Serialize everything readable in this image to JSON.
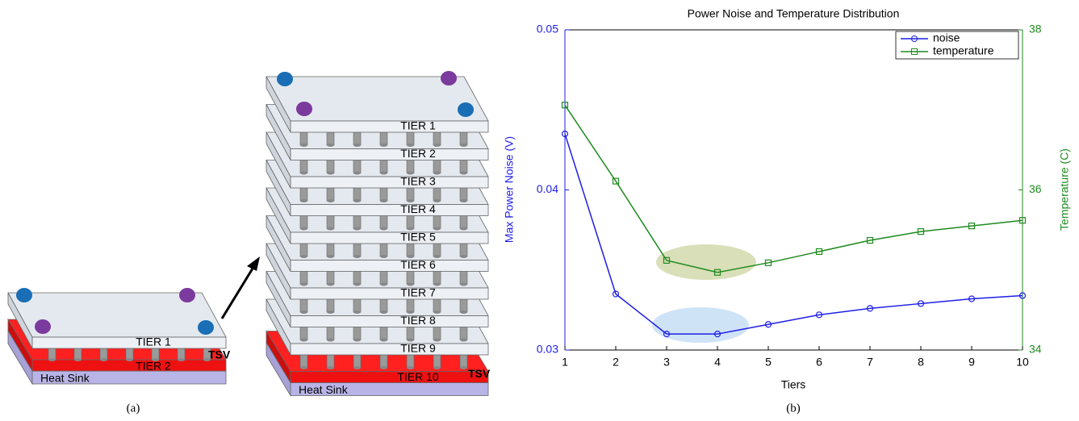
{
  "diagram": {
    "left": {
      "tiers": [
        "TIER 1",
        "TIER 2"
      ],
      "heat_sink": "Heat Sink",
      "tsv": "TSV"
    },
    "right": {
      "tiers": [
        "TIER 1",
        "TIER 2",
        "TIER 3",
        "TIER 4",
        "TIER 5",
        "TIER 6",
        "TIER 7",
        "TIER 8",
        "TIER 9"
      ],
      "base_tier": "TIER 10",
      "heat_sink": "Heat Sink",
      "tsv": "TSV"
    },
    "caption": "(a)"
  },
  "chart_data": {
    "type": "line",
    "title": "Power Noise and Temperature Distribution",
    "caption": "(b)",
    "xlabel": "Tiers",
    "ylabel": "Max Power Noise (V)",
    "y2label": "Temperature (C)",
    "x": [
      1,
      2,
      3,
      4,
      5,
      6,
      7,
      8,
      9,
      10
    ],
    "xlim": [
      1,
      10
    ],
    "xticks": [
      1,
      2,
      3,
      4,
      5,
      6,
      7,
      8,
      9,
      10
    ],
    "ylim": [
      0.03,
      0.05
    ],
    "yticks": [
      0.03,
      0.04,
      0.05
    ],
    "y2lim": [
      34,
      38
    ],
    "y2ticks": [
      34,
      36,
      38
    ],
    "legend": "upper right",
    "series": [
      {
        "name": "noise",
        "color": "#1f1fe6",
        "marker": "circle",
        "axis": "y",
        "values": [
          0.0435,
          0.0335,
          0.031,
          0.031,
          0.0316,
          0.0322,
          0.0326,
          0.0329,
          0.0332,
          0.0334
        ]
      },
      {
        "name": "temperature",
        "color": "#1e8a1e",
        "marker": "square",
        "axis": "y2",
        "values": [
          37.06,
          36.11,
          35.12,
          34.97,
          35.09,
          35.23,
          35.37,
          35.48,
          35.55,
          35.62
        ]
      }
    ]
  }
}
